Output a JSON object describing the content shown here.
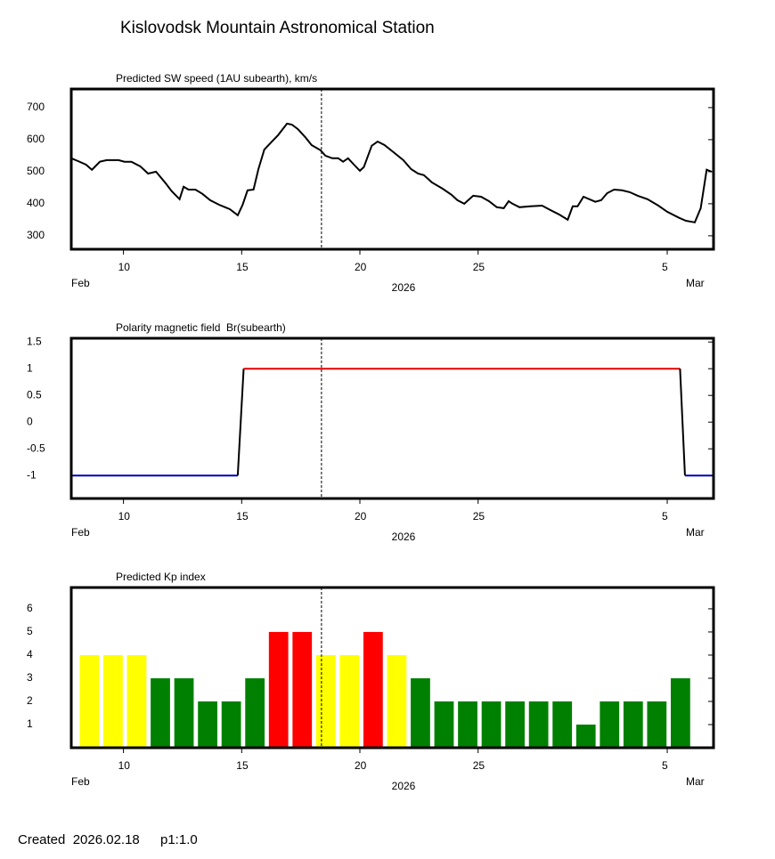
{
  "header": {
    "title": "Kislovodsk Mountain Astronomical Station"
  },
  "footer": {
    "created": "Created  2026.02.18",
    "version": "p1:1.0"
  },
  "chart_data": [
    {
      "type": "line",
      "title": "Predicted SW speed (1AU subearth), km/s",
      "x": [
        "2026-02-07T19:00",
        "2026-02-08T02:00",
        "2026-02-08T10:00",
        "2026-02-08T16:00",
        "2026-02-09T00:00",
        "2026-02-09T07:00",
        "2026-02-09T19:00",
        "2026-02-10T01:00",
        "2026-02-10T08:00",
        "2026-02-10T17:00",
        "2026-02-11T01:00",
        "2026-02-11T09:00",
        "2026-02-11T18:00",
        "2026-02-12T01:00",
        "2026-02-12T09:00",
        "2026-02-12T13:00",
        "2026-02-12T18:00",
        "2026-02-13T01:00",
        "2026-02-13T08:00",
        "2026-02-13T16:00",
        "2026-02-14T01:00",
        "2026-02-14T12:00",
        "2026-02-14T20:00",
        "2026-02-15T01:00",
        "2026-02-15T06:00",
        "2026-02-15T12:00",
        "2026-02-15T17:00",
        "2026-02-15T23:00",
        "2026-02-16T06:00",
        "2026-02-16T13:00",
        "2026-02-16T22:00",
        "2026-02-17T03:00",
        "2026-02-17T09:00",
        "2026-02-17T17:00",
        "2026-02-17T23:00",
        "2026-02-18T08:00",
        "2026-02-18T13:00",
        "2026-02-18T20:00",
        "2026-02-19T02:00",
        "2026-02-19T07:00",
        "2026-02-19T12:00",
        "2026-02-19T18:00",
        "2026-02-20T00:00",
        "2026-02-20T04:00",
        "2026-02-20T12:00",
        "2026-02-20T18:00",
        "2026-02-21T01:00",
        "2026-02-21T10:00",
        "2026-02-21T20:00",
        "2026-02-22T04:00",
        "2026-02-22T11:00",
        "2026-02-22T17:00",
        "2026-02-23T01:00",
        "2026-02-23T12:00",
        "2026-02-23T21:00",
        "2026-02-24T03:00",
        "2026-02-24T10:00",
        "2026-02-24T14:00",
        "2026-02-24T19:00",
        "2026-02-25T03:00",
        "2026-02-25T11:00",
        "2026-02-25T19:00",
        "2026-02-26T02:00",
        "2026-02-26T07:00",
        "2026-02-26T11:00",
        "2026-02-26T18:00",
        "2026-02-27T05:00",
        "2026-02-27T17:00",
        "2026-02-28T01:00",
        "2026-02-28T10:00",
        "2026-02-28T19:00",
        "2026-03-01T00:00",
        "2026-03-01T05:00",
        "2026-03-01T11:00",
        "2026-03-01T23:00",
        "2026-03-02T05:00",
        "2026-03-02T11:00",
        "2026-03-02T18:00",
        "2026-03-03T02:00",
        "2026-03-03T10:00",
        "2026-03-03T18:00",
        "2026-03-04T04:00",
        "2026-03-04T15:00",
        "2026-03-05T00:00",
        "2026-03-05T12:00",
        "2026-03-05T19:00",
        "2026-03-06T04:00",
        "2026-03-06T10:00",
        "2026-03-06T16:00",
        "2026-03-06T21:00"
      ],
      "values": [
        542,
        533,
        522,
        506,
        531,
        536,
        536,
        531,
        531,
        517,
        494,
        500,
        467,
        439,
        414,
        453,
        444,
        444,
        431,
        411,
        397,
        383,
        364,
        397,
        442,
        444,
        508,
        569,
        592,
        614,
        650,
        647,
        633,
        606,
        583,
        567,
        550,
        542,
        542,
        531,
        542,
        522,
        503,
        514,
        581,
        594,
        583,
        561,
        536,
        508,
        494,
        489,
        467,
        447,
        428,
        411,
        400,
        411,
        425,
        422,
        408,
        389,
        386,
        408,
        400,
        389,
        392,
        394,
        381,
        367,
        350,
        392,
        392,
        422,
        406,
        411,
        433,
        444,
        442,
        436,
        425,
        414,
        394,
        375,
        356,
        347,
        342,
        386,
        506,
        500
      ],
      "color": "#000000",
      "xlim": [
        "2026-02-07T19:00",
        "2026-03-06T23:00"
      ],
      "xticks": [
        {
          "value": "2026-02-10T00:00",
          "label": "10"
        },
        {
          "value": "2026-02-15T00:00",
          "label": "15"
        },
        {
          "value": "2026-02-20T00:00",
          "label": "20"
        },
        {
          "value": "2026-02-25T00:00",
          "label": "25"
        },
        {
          "value": "2026-03-05T00:00",
          "label": "5"
        }
      ],
      "x_start_label": "Feb",
      "x_end_label": "Mar",
      "xlabel": "2026",
      "ylim": [
        258,
        758
      ],
      "yticks": [
        300,
        400,
        500,
        600,
        700
      ],
      "marker_x": "2026-02-18T09:00"
    },
    {
      "type": "polarity",
      "title": "Polarity magnetic field  Br(subearth)",
      "x": [
        "2026-02-07T19:00",
        "2026-02-14T20:00",
        "2026-02-15T02:00",
        "2026-03-05T13:00",
        "2026-03-05T18:00",
        "2026-03-06T23:00"
      ],
      "values": [
        -1,
        -1,
        1,
        1,
        -1,
        -1
      ],
      "color": "#000000",
      "color_positive": "#e00000",
      "color_negative": "#0000c0",
      "xlim": [
        "2026-02-07T19:00",
        "2026-03-06T23:00"
      ],
      "xticks": [
        {
          "value": "2026-02-10T00:00",
          "label": "10"
        },
        {
          "value": "2026-02-15T00:00",
          "label": "15"
        },
        {
          "value": "2026-02-20T00:00",
          "label": "20"
        },
        {
          "value": "2026-02-25T00:00",
          "label": "25"
        },
        {
          "value": "2026-03-05T00:00",
          "label": "5"
        }
      ],
      "x_start_label": "Feb",
      "x_end_label": "Mar",
      "xlabel": "2026",
      "ylim": [
        -1.43,
        1.57
      ],
      "yticks": [
        1.5,
        1,
        0.5,
        0,
        -0.5,
        -1
      ],
      "marker_x": "2026-02-18T09:00"
    },
    {
      "type": "bar",
      "title": "Predicted Kp index",
      "x": [
        "2026-02-08T00:00",
        "2026-02-09T00:00",
        "2026-02-10T00:00",
        "2026-02-11T00:00",
        "2026-02-12T00:00",
        "2026-02-13T00:00",
        "2026-02-14T00:00",
        "2026-02-15T00:00",
        "2026-02-16T00:00",
        "2026-02-17T00:00",
        "2026-02-18T00:00",
        "2026-02-19T00:00",
        "2026-02-20T00:00",
        "2026-02-21T00:00",
        "2026-02-22T00:00",
        "2026-02-23T00:00",
        "2026-02-24T00:00",
        "2026-02-25T00:00",
        "2026-02-26T00:00",
        "2026-02-27T00:00",
        "2026-02-28T00:00",
        "2026-03-01T00:00",
        "2026-03-02T00:00",
        "2026-03-03T00:00",
        "2026-03-04T00:00",
        "2026-03-05T00:00"
      ],
      "values": [
        4,
        4,
        4,
        3,
        3,
        2,
        2,
        3,
        5,
        5,
        4,
        4,
        5,
        4,
        3,
        2,
        2,
        2,
        2,
        2,
        2,
        1,
        2,
        2,
        2,
        3
      ],
      "colors": [
        "#ffff00",
        "#ffff00",
        "#ffff00",
        "#008000",
        "#008000",
        "#008000",
        "#008000",
        "#008000",
        "#ff0000",
        "#ff0000",
        "#ffff00",
        "#ffff00",
        "#ff0000",
        "#ffff00",
        "#008000",
        "#008000",
        "#008000",
        "#008000",
        "#008000",
        "#008000",
        "#008000",
        "#008000",
        "#008000",
        "#008000",
        "#008000",
        "#008000"
      ],
      "xlim": [
        "2026-02-07T19:00",
        "2026-03-06T23:00"
      ],
      "xticks": [
        {
          "value": "2026-02-10T00:00",
          "label": "10"
        },
        {
          "value": "2026-02-15T00:00",
          "label": "15"
        },
        {
          "value": "2026-02-20T00:00",
          "label": "20"
        },
        {
          "value": "2026-02-25T00:00",
          "label": "25"
        },
        {
          "value": "2026-03-05T00:00",
          "label": "5"
        }
      ],
      "x_start_label": "Feb",
      "x_end_label": "Mar",
      "xlabel": "2026",
      "ylim": [
        0,
        6.92
      ],
      "yticks": [
        1,
        2,
        3,
        4,
        5,
        6
      ],
      "marker_x": "2026-02-18T09:00"
    }
  ]
}
